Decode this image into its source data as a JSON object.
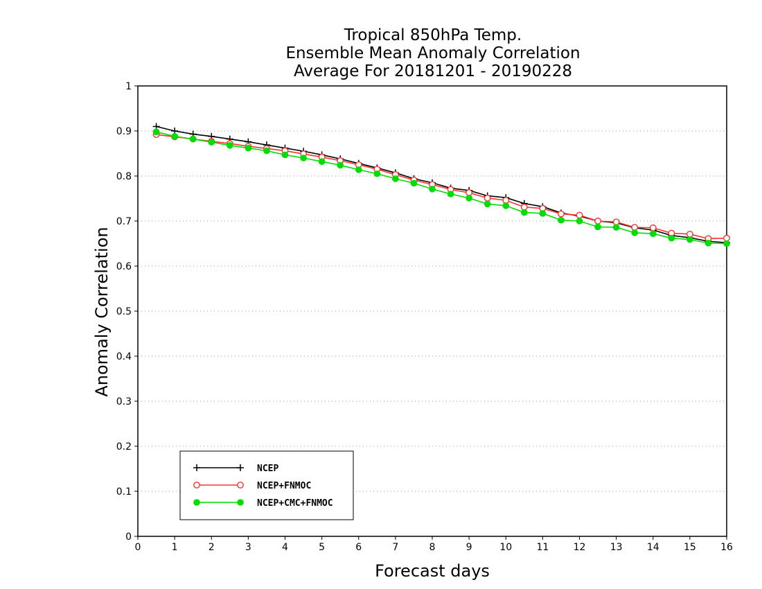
{
  "chart_data": {
    "type": "line",
    "title": [
      "Tropical 850hPa Temp.",
      "Ensemble Mean Anomaly Correlation",
      "Average For 20181201 - 20190228"
    ],
    "xlabel": "Forecast days",
    "ylabel": "Anomaly Correlation",
    "xlim": [
      0,
      16
    ],
    "ylim": [
      0,
      1
    ],
    "xticks": [
      "0",
      "1",
      "2",
      "3",
      "4",
      "5",
      "6",
      "7",
      "8",
      "9",
      "10",
      "11",
      "12",
      "13",
      "14",
      "15",
      "16"
    ],
    "yticks": [
      "0",
      "0.1",
      "0.2",
      "0.3",
      "0.4",
      "0.5",
      "0.6",
      "0.7",
      "0.8",
      "0.9",
      "1"
    ],
    "grid": "horizontal-dotted",
    "legend_position": "bottom-left",
    "x": [
      0.5,
      1,
      1.5,
      2,
      2.5,
      3,
      3.5,
      4,
      4.5,
      5,
      5.5,
      6,
      6.5,
      7,
      7.5,
      8,
      8.5,
      9,
      9.5,
      10,
      10.5,
      11,
      11.5,
      12,
      12.5,
      13,
      13.5,
      14,
      14.5,
      15,
      15.5,
      16
    ],
    "series": [
      {
        "name": "NCEP",
        "color": "#000000",
        "marker": "plus",
        "values": [
          0.91,
          0.9,
          0.893,
          0.888,
          0.882,
          0.876,
          0.869,
          0.862,
          0.855,
          0.847,
          0.838,
          0.828,
          0.818,
          0.807,
          0.794,
          0.785,
          0.773,
          0.768,
          0.756,
          0.752,
          0.739,
          0.732,
          0.718,
          0.711,
          0.7,
          0.696,
          0.685,
          0.68,
          0.668,
          0.663,
          0.655,
          0.652
        ]
      },
      {
        "name": "NCEP+FNMOC",
        "color": "#ff3030",
        "marker": "open-circle",
        "values": [
          0.892,
          0.887,
          0.882,
          0.877,
          0.872,
          0.866,
          0.861,
          0.856,
          0.849,
          0.842,
          0.834,
          0.825,
          0.815,
          0.803,
          0.791,
          0.781,
          0.77,
          0.763,
          0.751,
          0.746,
          0.731,
          0.728,
          0.716,
          0.713,
          0.7,
          0.698,
          0.686,
          0.685,
          0.673,
          0.671,
          0.661,
          0.662
        ]
      },
      {
        "name": "NCEP+CMC+FNMOC",
        "color": "#00dd00",
        "marker": "filled-circle",
        "values": [
          0.898,
          0.888,
          0.882,
          0.875,
          0.868,
          0.862,
          0.856,
          0.847,
          0.84,
          0.832,
          0.824,
          0.814,
          0.805,
          0.794,
          0.784,
          0.771,
          0.76,
          0.751,
          0.738,
          0.734,
          0.719,
          0.717,
          0.702,
          0.7,
          0.687,
          0.686,
          0.674,
          0.672,
          0.662,
          0.659,
          0.651,
          0.65
        ]
      }
    ]
  }
}
